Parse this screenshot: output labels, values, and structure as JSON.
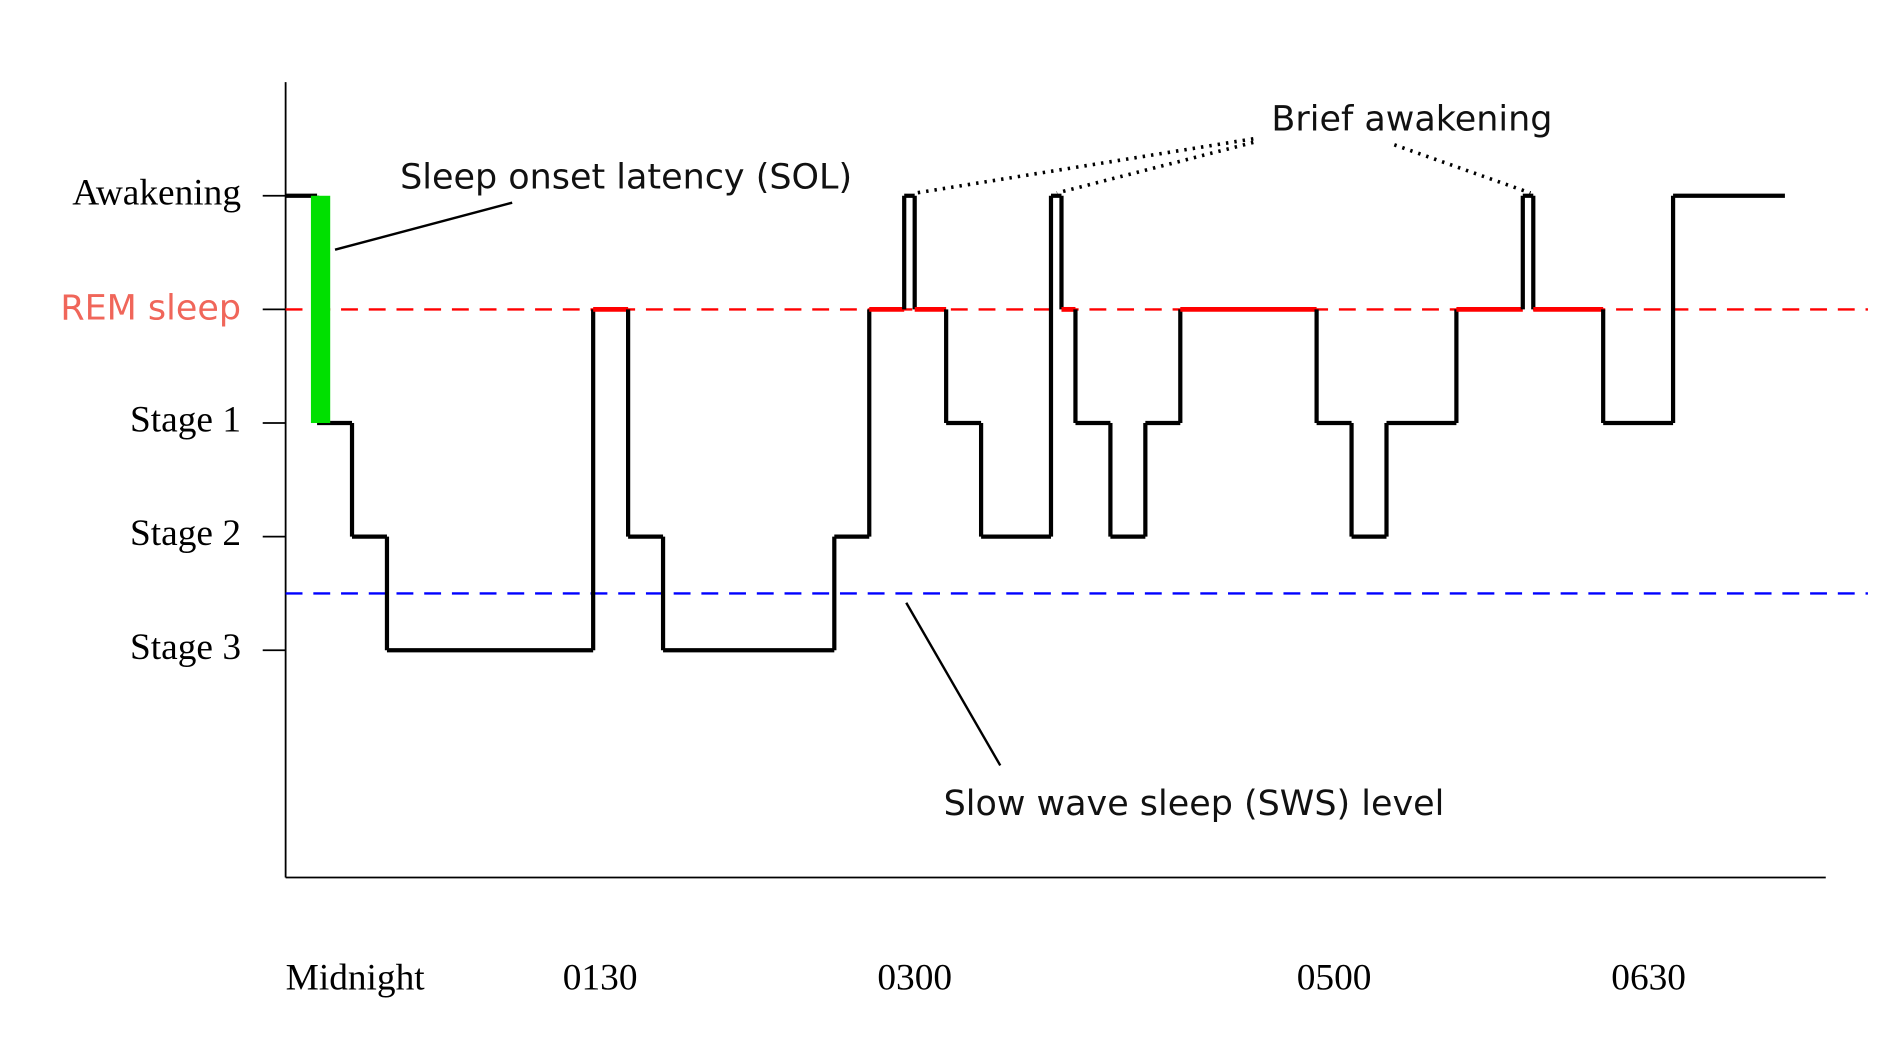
{
  "chart_data": {
    "type": "step",
    "x": [
      0,
      9,
      19,
      29,
      88,
      98,
      108,
      157,
      167,
      177,
      180,
      189,
      199,
      219,
      222,
      226,
      236,
      246,
      256,
      295,
      305,
      315,
      335,
      354,
      357,
      377,
      397,
      429
    ],
    "values": [
      5,
      3,
      2,
      1,
      4,
      2,
      1,
      2,
      4,
      5,
      4,
      3,
      2,
      5,
      4,
      3,
      2,
      3,
      4,
      3,
      2,
      3,
      4,
      5,
      4,
      3,
      5,
      5
    ],
    "color": "#000000",
    "highlight": {
      "value": 4,
      "color": "#ff0000",
      "label_color": "#f0665a"
    },
    "xlim": [
      0,
      440
    ],
    "xticks": [
      {
        "value": 0,
        "label": "Midnight"
      },
      {
        "value": 90,
        "label": "0130"
      },
      {
        "value": 180,
        "label": "0300"
      },
      {
        "value": 300,
        "label": "0500"
      },
      {
        "value": 390,
        "label": "0630"
      }
    ],
    "ylim": [
      -1,
      6
    ],
    "yticks": [
      {
        "value": 5,
        "label": "Awakening"
      },
      {
        "value": 4,
        "label": "REM sleep"
      },
      {
        "value": 3,
        "label": "Stage 1"
      },
      {
        "value": 2,
        "label": "Stage 2"
      },
      {
        "value": 1,
        "label": "Stage 3"
      }
    ],
    "reference_lines": [
      {
        "value": 4,
        "color": "#ff0000"
      },
      {
        "value": 1.5,
        "color": "#0000ff"
      }
    ],
    "sol_bar": {
      "x": 10,
      "from": 3,
      "to": 5,
      "color": "#00e000"
    },
    "annotations": [
      "Sleep onset latency (SOL)",
      "Brief awakening",
      "Slow wave sleep (SWS) level"
    ]
  }
}
